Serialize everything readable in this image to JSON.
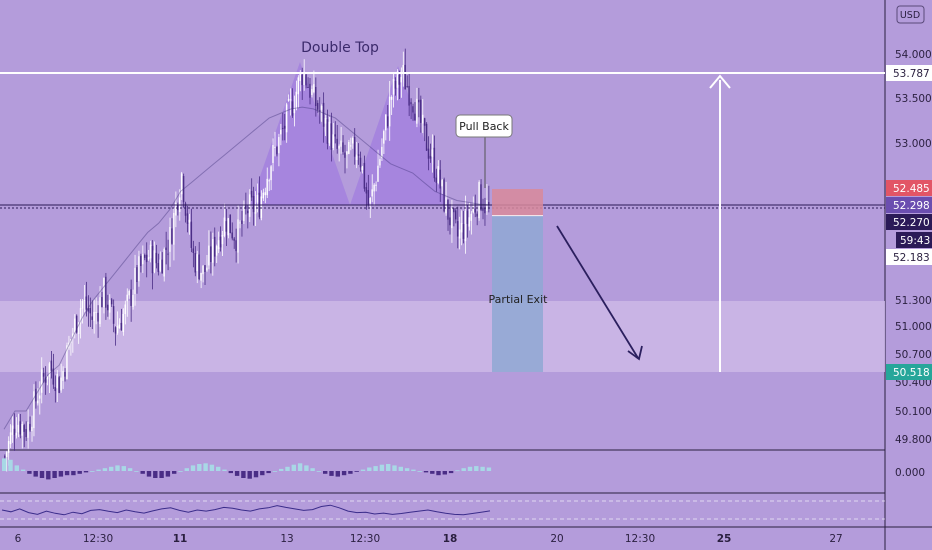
{
  "currency_badge": "USD",
  "colors": {
    "background": "#b49cdb",
    "up_candle": "#ffffff",
    "down_candle": "#4a2d86",
    "resistance_line": "#ffffff",
    "support_zone": "#cdb8e6",
    "double_top_fill": "#a07ce0",
    "target_zone": "#8fa8d3",
    "stop_zone": "#d88a9a",
    "stop_badge": "#e25566",
    "entry_badge": "#2b1a57",
    "target_badge": "#26a69a",
    "arrow": "#2b1f5e"
  },
  "chart_data": {
    "type": "candlestick",
    "title": "Double Top",
    "annotations": {
      "pull_back": "Pull Back",
      "partial_exit": "Partial Exit"
    },
    "price_axis": {
      "labels": [
        "54.000",
        "53.500",
        "53.000",
        "51.300",
        "51.000",
        "50.700",
        "50.400",
        "50.100",
        "49.800",
        "0.000"
      ],
      "badges": {
        "resistance": "53.787",
        "stop": "52.485",
        "prev": "52.298",
        "current": "52.270",
        "countdown": "59:43",
        "low_mark": "52.183",
        "target": "50.518"
      }
    },
    "time_axis": {
      "labels": [
        {
          "text": "6",
          "bold": false
        },
        {
          "text": "12:30",
          "bold": false
        },
        {
          "text": "11",
          "bold": true
        },
        {
          "text": "13",
          "bold": false
        },
        {
          "text": "12:30",
          "bold": false
        },
        {
          "text": "18",
          "bold": true
        },
        {
          "text": "20",
          "bold": false
        },
        {
          "text": "12:30",
          "bold": false
        },
        {
          "text": "25",
          "bold": true
        },
        {
          "text": "27",
          "bold": false
        }
      ]
    },
    "price_path": [
      49.6,
      50.0,
      49.9,
      50.3,
      50.6,
      50.4,
      50.9,
      51.3,
      51.1,
      51.4,
      51.0,
      51.2,
      51.6,
      51.8,
      51.7,
      52.0,
      52.7,
      51.8,
      51.6,
      51.9,
      52.2,
      52.0,
      52.3,
      52.35,
      52.8,
      53.1,
      53.45,
      53.82,
      53.5,
      53.25,
      52.95,
      52.85,
      53.0,
      52.3,
      52.9,
      53.55,
      53.78,
      53.5,
      53.1,
      52.75,
      52.3,
      52.0,
      52.2,
      52.45,
      52.27
    ],
    "sma_path": [
      49.9,
      50.1,
      50.1,
      50.3,
      50.5,
      50.6,
      50.85,
      51.1,
      51.3,
      51.45,
      51.6,
      51.75,
      51.9,
      52.05,
      52.15,
      52.3,
      52.5,
      52.6,
      52.7,
      52.8,
      52.9,
      53.0,
      53.1,
      53.2,
      53.3,
      53.35,
      53.4,
      53.42,
      53.4,
      53.35,
      53.3,
      53.2,
      53.1,
      53.0,
      52.9,
      52.8,
      52.75,
      52.7,
      52.6,
      52.5,
      52.45,
      52.4,
      52.38,
      52.36,
      52.35
    ],
    "macd_hist": [
      0.9,
      0.8,
      0.4,
      0.1,
      -0.2,
      -0.4,
      -0.5,
      -0.6,
      -0.5,
      -0.4,
      -0.3,
      -0.3,
      -0.2,
      -0.1,
      0.0,
      0.1,
      0.2,
      0.3,
      0.4,
      0.35,
      0.2,
      0.0,
      -0.2,
      -0.4,
      -0.5,
      -0.5,
      -0.4,
      -0.2,
      0.0,
      0.2,
      0.4,
      0.5,
      0.55,
      0.45,
      0.3,
      0.1,
      -0.15,
      -0.35,
      -0.5,
      -0.55,
      -0.45,
      -0.3,
      -0.15,
      0.0,
      0.15,
      0.3,
      0.45,
      0.55,
      0.4,
      0.2,
      0.0,
      -0.2,
      -0.35,
      -0.4,
      -0.3,
      -0.2,
      -0.05,
      0.1,
      0.25,
      0.35,
      0.45,
      0.5,
      0.4,
      0.3,
      0.2,
      0.1,
      0.0,
      -0.1,
      -0.2,
      -0.3,
      -0.25,
      -0.15,
      0.05,
      0.2,
      0.3,
      0.35,
      0.3,
      0.25
    ],
    "oscillator": [
      0.5,
      0.42,
      0.55,
      0.38,
      0.3,
      0.45,
      0.35,
      0.28,
      0.4,
      0.33,
      0.48,
      0.52,
      0.44,
      0.38,
      0.5,
      0.42,
      0.36,
      0.46,
      0.55,
      0.6,
      0.48,
      0.4,
      0.5,
      0.45,
      0.52,
      0.62,
      0.58,
      0.5,
      0.45,
      0.55,
      0.6,
      0.7,
      0.62,
      0.55,
      0.48,
      0.52,
      0.66,
      0.72,
      0.6,
      0.45,
      0.38,
      0.4,
      0.32,
      0.36,
      0.3,
      0.34,
      0.4,
      0.45,
      0.5,
      0.42,
      0.35,
      0.3,
      0.28,
      0.34,
      0.4,
      0.46
    ]
  }
}
